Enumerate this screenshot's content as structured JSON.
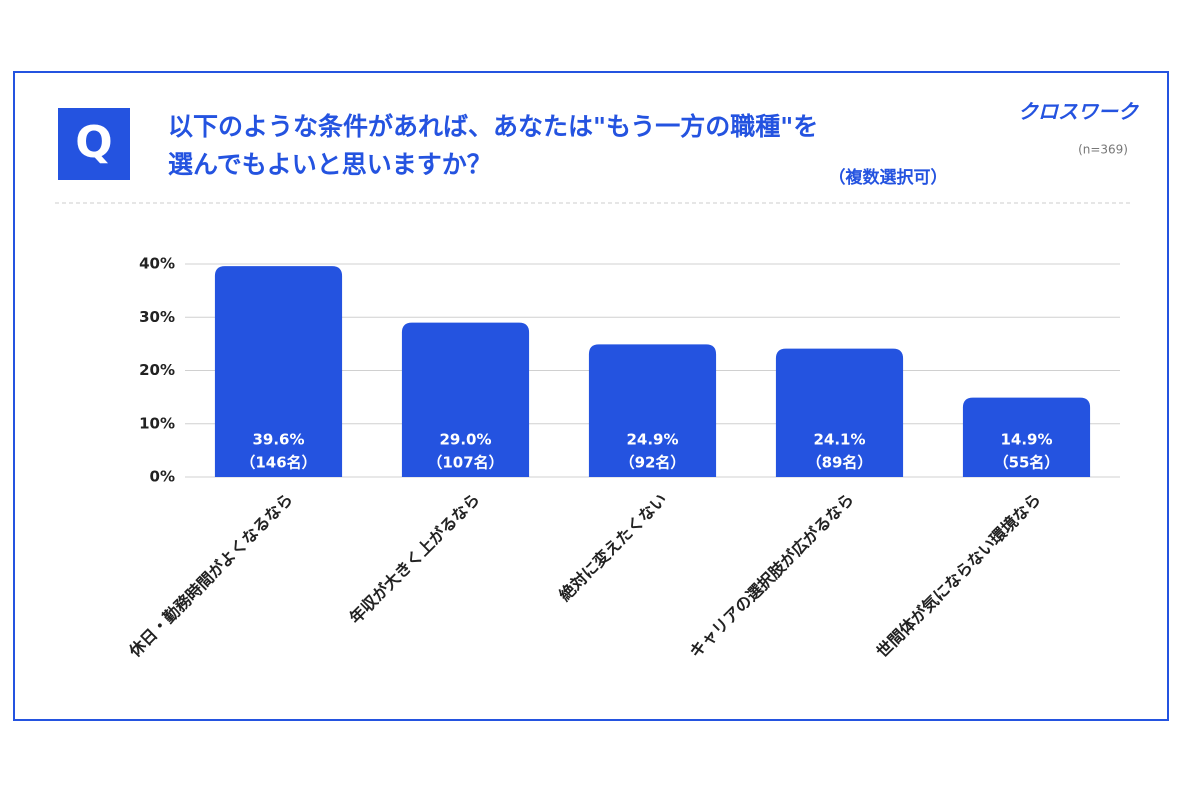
{
  "chart_data": {
    "type": "bar",
    "badge": "Q",
    "title": [
      "以下のような条件があれば、あなたは\"もう一方の職種\"を",
      "選んでもよいと思いますか？"
    ],
    "brand": "クロスワーク",
    "sample_size": "(n=369)",
    "note": "（複数選択可）",
    "categories": [
      "休日・勤務時間がよくなるなら",
      "年収が大きく上がるなら",
      "絶対に変えたくない",
      "キャリアの選択肢が広がるなら",
      "世間体が気にならない環境なら"
    ],
    "values": [
      39.6,
      29.0,
      24.9,
      24.1,
      14.9
    ],
    "value_labels": [
      "39.6%",
      "29.0%",
      "24.9%",
      "24.1%",
      "14.9%"
    ],
    "count_labels": [
      "（146名）",
      "（107名）",
      "（92名）",
      "（89名）",
      "（55名）"
    ],
    "color": "#2453e0",
    "ylim": [
      0,
      40
    ],
    "yticks": [
      {
        "value": 0,
        "label": "0%"
      },
      {
        "value": 10,
        "label": "10%"
      },
      {
        "value": 20,
        "label": "20%"
      },
      {
        "value": 30,
        "label": "30%"
      },
      {
        "value": 40,
        "label": "40%"
      }
    ],
    "grid": true
  }
}
